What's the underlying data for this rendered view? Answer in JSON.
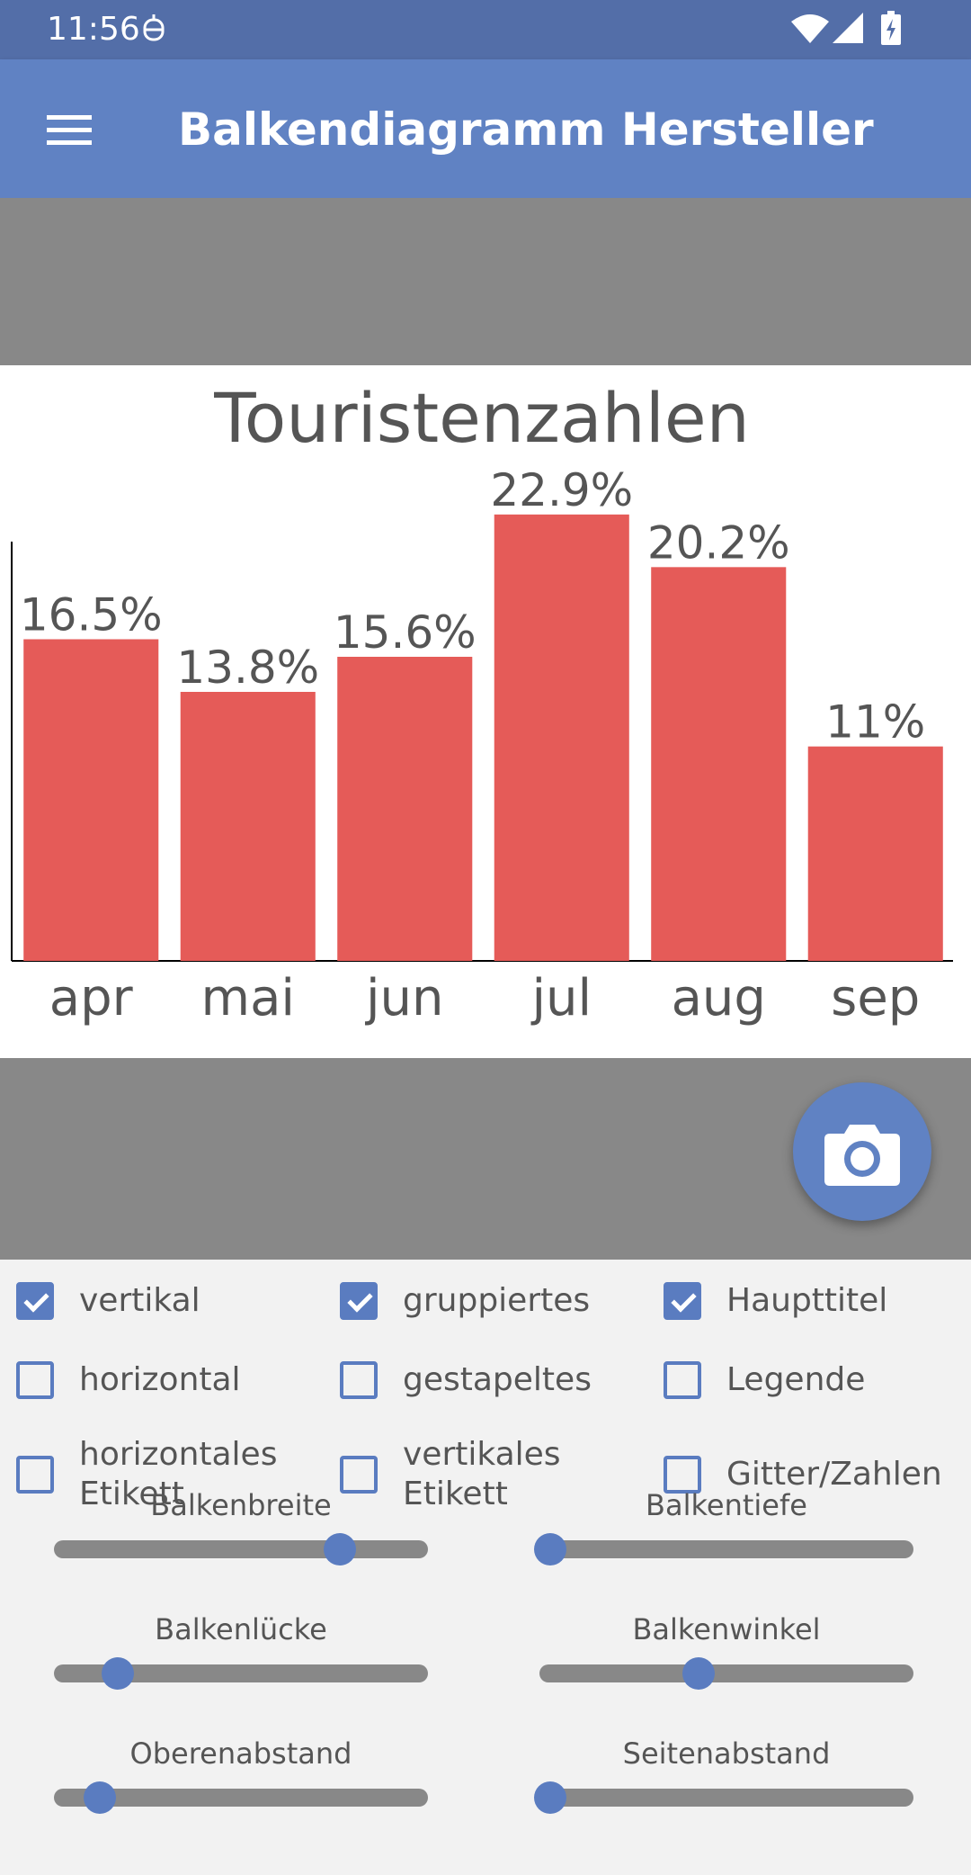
{
  "status_bar": {
    "time": "11:56",
    "icons": [
      "notification-icon",
      "wifi-icon",
      "signal-icon",
      "battery-charging-icon"
    ]
  },
  "app_bar": {
    "title": "Balkendiagramm Hersteller",
    "menu_icon": "hamburger-menu-icon"
  },
  "colors": {
    "status_bar": "#536ea8",
    "app_bar": "#6082c3",
    "accent": "#5a7cc0",
    "bar": "#e55b58",
    "panel_gray": "#888888",
    "controls_bg": "#f2f2f2"
  },
  "chart_data": {
    "type": "bar",
    "title": "Touristenzahlen",
    "categories": [
      "apr",
      "mai",
      "jun",
      "jul",
      "aug",
      "sep"
    ],
    "values": [
      16.5,
      13.8,
      15.6,
      22.9,
      20.2,
      11
    ],
    "data_labels": [
      "16.5%",
      "13.8%",
      "15.6%",
      "22.9%",
      "20.2%",
      "11%"
    ],
    "xlabel": "",
    "ylabel": "",
    "ylim": [
      0,
      24
    ],
    "grid": false,
    "legend": false
  },
  "fab": {
    "icon": "camera-icon"
  },
  "checkboxes": [
    {
      "id": "vertikal",
      "label": "vertikal",
      "checked": true
    },
    {
      "id": "gruppiertes",
      "label": "gruppiertes",
      "checked": true
    },
    {
      "id": "haupttitel",
      "label": "Haupttitel",
      "checked": true
    },
    {
      "id": "horizontal",
      "label": "horizontal",
      "checked": false
    },
    {
      "id": "gestapeltes",
      "label": "gestapeltes",
      "checked": false
    },
    {
      "id": "legende",
      "label": "Legende",
      "checked": false
    },
    {
      "id": "horizontales-etikett",
      "label": "horizontales\nEtikett",
      "checked": false
    },
    {
      "id": "vertikales-etikett",
      "label": "vertikales\nEtikett",
      "checked": false
    },
    {
      "id": "gitter-zahlen",
      "label": "Gitter/Zahlen",
      "checked": false
    }
  ],
  "sliders": [
    {
      "id": "balkenbreite",
      "label": "Balkenbreite",
      "value": 0.78
    },
    {
      "id": "balkentiefe",
      "label": "Balkentiefe",
      "value": 0.0
    },
    {
      "id": "balkenluecke",
      "label": "Balkenlücke",
      "value": 0.15
    },
    {
      "id": "balkenwinkel",
      "label": "Balkenwinkel",
      "value": 0.42
    },
    {
      "id": "oberenabstand",
      "label": "Oberenabstand",
      "value": 0.1
    },
    {
      "id": "seitenabstand",
      "label": "Seitenabstand",
      "value": 0.0
    }
  ]
}
